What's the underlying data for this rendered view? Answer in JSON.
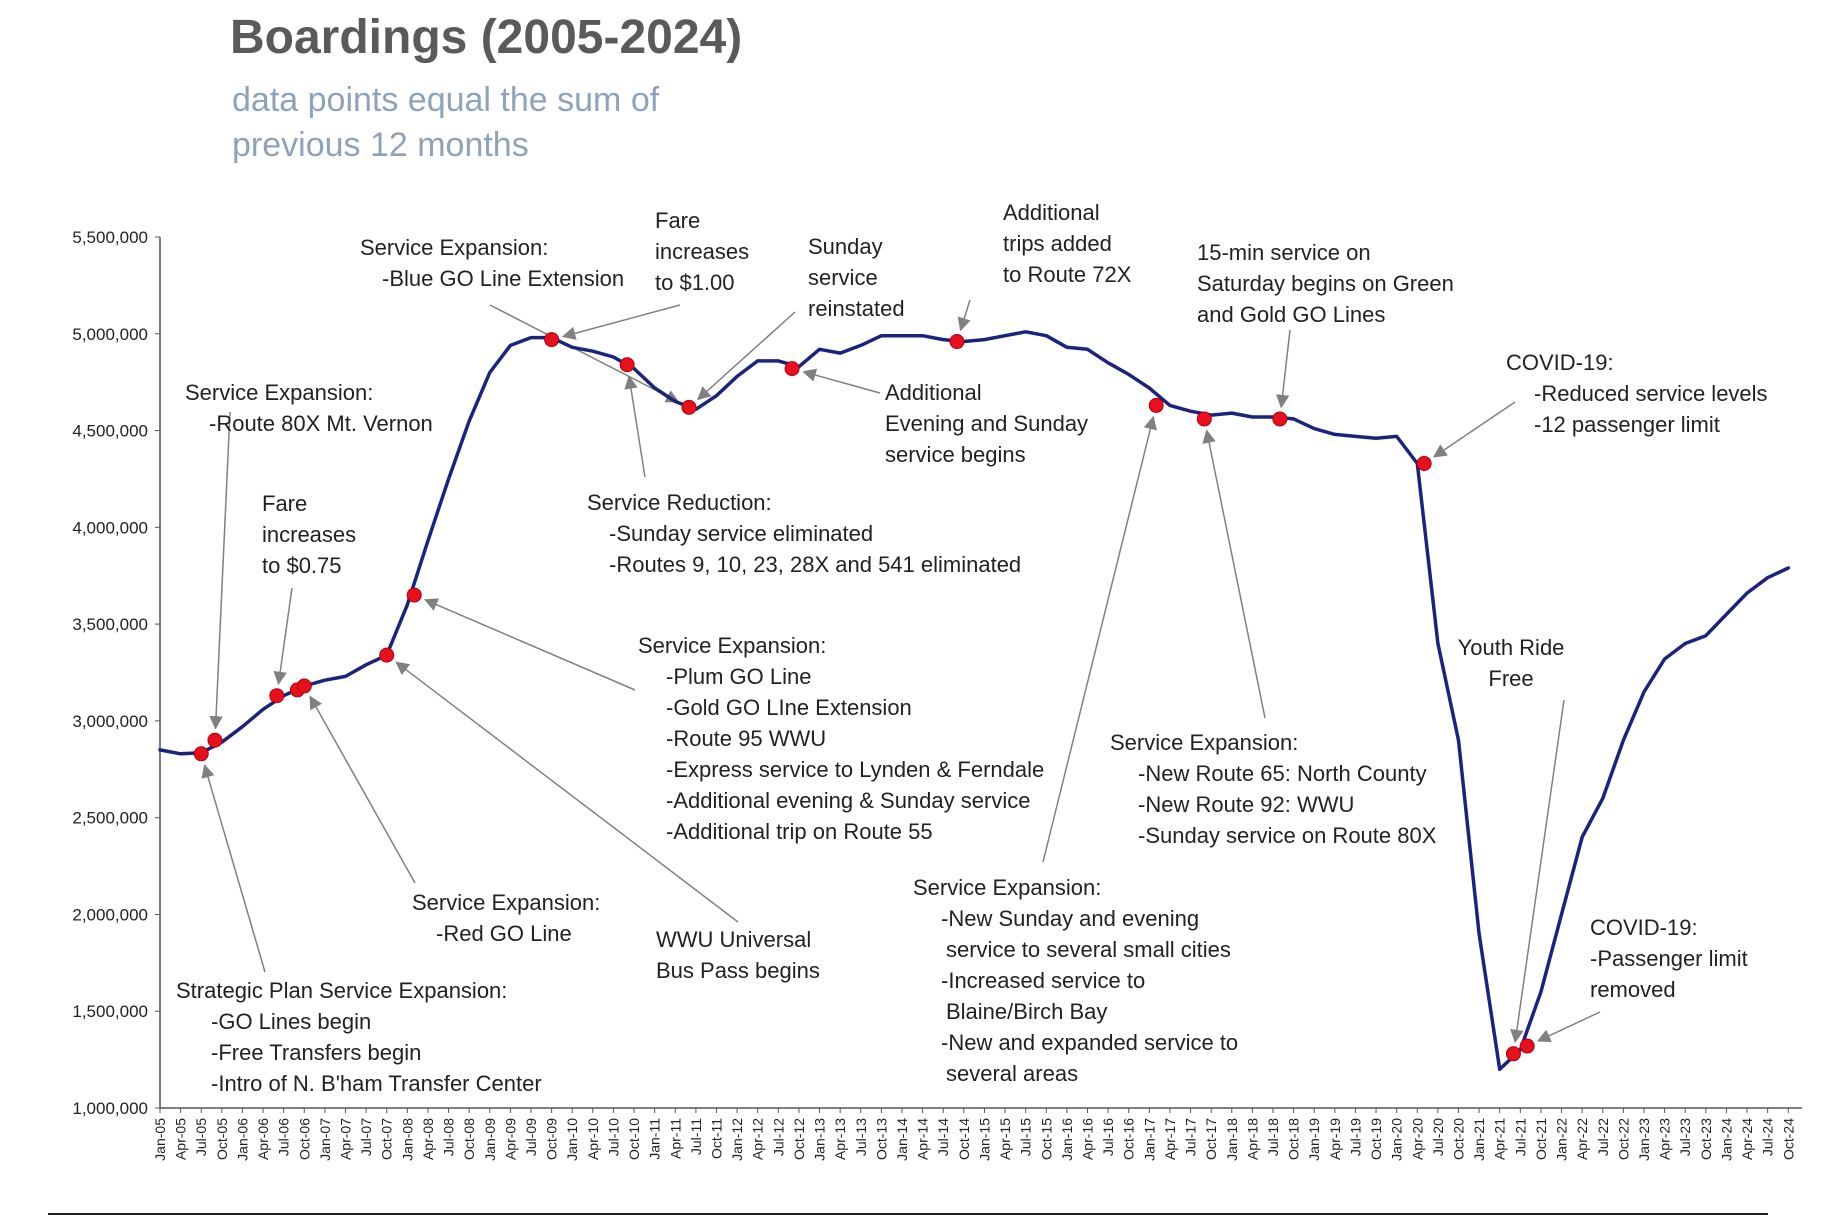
{
  "header": {
    "title": "Boardings (2005-2024)",
    "subtitle": "data points equal the sum of previous 12 months"
  },
  "colors": {
    "line": "#1a237e",
    "marker": "#e8101c",
    "arrow": "#808080",
    "axis": "#555555"
  },
  "chart_data": {
    "type": "line",
    "title": "Boardings (2005-2024)",
    "subtitle": "data points equal the sum of previous 12 months",
    "xlabel": "",
    "ylabel": "",
    "ylim": [
      1000000,
      5500000
    ],
    "grid": false,
    "legend": "none",
    "y_ticks": [
      "1,000,000",
      "1,500,000",
      "2,000,000",
      "2,500,000",
      "3,000,000",
      "3,500,000",
      "4,000,000",
      "4,500,000",
      "5,000,000",
      "5,500,000"
    ],
    "x_ticks": [
      "Jan-05",
      "Apr-05",
      "Jul-05",
      "Oct-05",
      "Jan-06",
      "Apr-06",
      "Jul-06",
      "Oct-06",
      "Jan-07",
      "Apr-07",
      "Jul-07",
      "Oct-07",
      "Jan-08",
      "Apr-08",
      "Jul-08",
      "Oct-08",
      "Jan-09",
      "Apr-09",
      "Jul-09",
      "Oct-09",
      "Jan-10",
      "Apr-10",
      "Jul-10",
      "Oct-10",
      "Jan-11",
      "Apr-11",
      "Jul-11",
      "Oct-11",
      "Jan-12",
      "Apr-12",
      "Jul-12",
      "Oct-12",
      "Jan-13",
      "Apr-13",
      "Jul-13",
      "Oct-13",
      "Jan-14",
      "Apr-14",
      "Jul-14",
      "Oct-14",
      "Jan-15",
      "Apr-15",
      "Jul-15",
      "Oct-15",
      "Jan-16",
      "Apr-16",
      "Jul-16",
      "Oct-16",
      "Jan-17",
      "Apr-17",
      "Jul-17",
      "Oct-17",
      "Jan-18",
      "Apr-18",
      "Jul-18",
      "Oct-18",
      "Jan-19",
      "Apr-19",
      "Jul-19",
      "Oct-19",
      "Jan-20",
      "Apr-20",
      "Jul-20",
      "Oct-20",
      "Jan-21",
      "Apr-21",
      "Jul-21",
      "Oct-21",
      "Jan-22",
      "Apr-22",
      "Jul-22",
      "Oct-22",
      "Jan-23",
      "Apr-23",
      "Jul-23",
      "Oct-23",
      "Jan-24",
      "Apr-24",
      "Jul-24",
      "Oct-24"
    ],
    "series": [
      {
        "name": "",
        "points": [
          [
            "Jan-05",
            2850000
          ],
          [
            "Apr-05",
            2830000
          ],
          [
            "Jul-05",
            2835000
          ],
          [
            "Oct-05",
            2890000
          ],
          [
            "Jan-06",
            2970000
          ],
          [
            "Apr-06",
            3060000
          ],
          [
            "Jul-06",
            3130000
          ],
          [
            "Oct-06",
            3180000
          ],
          [
            "Jan-07",
            3210000
          ],
          [
            "Apr-07",
            3230000
          ],
          [
            "Jul-07",
            3290000
          ],
          [
            "Oct-07",
            3340000
          ],
          [
            "Jan-08",
            3600000
          ],
          [
            "Apr-08",
            3930000
          ],
          [
            "Jul-08",
            4250000
          ],
          [
            "Oct-08",
            4550000
          ],
          [
            "Jan-09",
            4800000
          ],
          [
            "Apr-09",
            4940000
          ],
          [
            "Jul-09",
            4980000
          ],
          [
            "Oct-09",
            4980000
          ],
          [
            "Jan-10",
            4930000
          ],
          [
            "Apr-10",
            4910000
          ],
          [
            "Jul-10",
            4880000
          ],
          [
            "Oct-10",
            4820000
          ],
          [
            "Jan-11",
            4720000
          ],
          [
            "Apr-11",
            4650000
          ],
          [
            "Jul-11",
            4610000
          ],
          [
            "Oct-11",
            4680000
          ],
          [
            "Jan-12",
            4780000
          ],
          [
            "Apr-12",
            4860000
          ],
          [
            "Jul-12",
            4860000
          ],
          [
            "Oct-12",
            4830000
          ],
          [
            "Jan-13",
            4920000
          ],
          [
            "Apr-13",
            4900000
          ],
          [
            "Jul-13",
            4940000
          ],
          [
            "Oct-13",
            4990000
          ],
          [
            "Jan-14",
            4990000
          ],
          [
            "Apr-14",
            4990000
          ],
          [
            "Jul-14",
            4970000
          ],
          [
            "Oct-14",
            4960000
          ],
          [
            "Jan-15",
            4970000
          ],
          [
            "Apr-15",
            4990000
          ],
          [
            "Jul-15",
            5010000
          ],
          [
            "Oct-15",
            4990000
          ],
          [
            "Jan-16",
            4930000
          ],
          [
            "Apr-16",
            4920000
          ],
          [
            "Jul-16",
            4850000
          ],
          [
            "Oct-16",
            4790000
          ],
          [
            "Jan-17",
            4720000
          ],
          [
            "Apr-17",
            4630000
          ],
          [
            "Jul-17",
            4600000
          ],
          [
            "Oct-17",
            4580000
          ],
          [
            "Jan-18",
            4590000
          ],
          [
            "Apr-18",
            4570000
          ],
          [
            "Jul-18",
            4570000
          ],
          [
            "Oct-18",
            4560000
          ],
          [
            "Jan-19",
            4510000
          ],
          [
            "Apr-19",
            4480000
          ],
          [
            "Jul-19",
            4470000
          ],
          [
            "Oct-19",
            4460000
          ],
          [
            "Jan-20",
            4470000
          ],
          [
            "Apr-20",
            4330000
          ],
          [
            "Jul-20",
            3400000
          ],
          [
            "Oct-20",
            2900000
          ],
          [
            "Jan-21",
            1900000
          ],
          [
            "Apr-21",
            1200000
          ],
          [
            "Jul-21",
            1300000
          ],
          [
            "Oct-21",
            1600000
          ],
          [
            "Jan-22",
            2000000
          ],
          [
            "Apr-22",
            2400000
          ],
          [
            "Jul-22",
            2600000
          ],
          [
            "Oct-22",
            2900000
          ],
          [
            "Jan-23",
            3150000
          ],
          [
            "Apr-23",
            3320000
          ],
          [
            "Jul-23",
            3400000
          ],
          [
            "Oct-23",
            3440000
          ],
          [
            "Jan-24",
            3550000
          ],
          [
            "Apr-24",
            3660000
          ],
          [
            "Jul-24",
            3740000
          ],
          [
            "Oct-24",
            3790000
          ]
        ]
      }
    ],
    "markers": [
      [
        "Jul-05",
        2830000
      ],
      [
        "Sep-05",
        2900000
      ],
      [
        "Jun-06",
        3130000
      ],
      [
        "Sep-06",
        3160000
      ],
      [
        "Oct-06",
        3180000
      ],
      [
        "Oct-07",
        3340000
      ],
      [
        "Feb-08",
        3650000
      ],
      [
        "Oct-09",
        4970000
      ],
      [
        "Sep-10",
        4840000
      ],
      [
        "Jun-11",
        4620000
      ],
      [
        "Sep-12",
        4820000
      ],
      [
        "Sep-14",
        4960000
      ],
      [
        "Feb-17",
        4630000
      ],
      [
        "Sep-17",
        4560000
      ],
      [
        "Aug-18",
        4560000
      ],
      [
        "May-20",
        4330000
      ],
      [
        "Jun-21",
        1280000
      ],
      [
        "Aug-21",
        1320000
      ]
    ],
    "annotations": [
      {
        "lines": [
          "Service Expansion:",
          "-Blue GO Line Extension"
        ]
      },
      {
        "lines": [
          "Fare",
          "increases",
          "to $1.00"
        ]
      },
      {
        "lines": [
          "Sunday",
          "service",
          "reinstated"
        ]
      },
      {
        "lines": [
          "Additional",
          "trips added",
          "to Route 72X"
        ]
      },
      {
        "lines": [
          "15-min service on",
          "Saturday begins on Green",
          "and Gold GO Lines"
        ]
      },
      {
        "lines": [
          "COVID-19:",
          "-Reduced service levels",
          "-12 passenger limit"
        ]
      },
      {
        "lines": [
          "Service Expansion:",
          "-Route 80X Mt. Vernon"
        ]
      },
      {
        "lines": [
          "Fare",
          "increases",
          "to $0.75"
        ]
      },
      {
        "lines": [
          "Additional",
          "Evening and Sunday",
          "service begins"
        ]
      },
      {
        "lines": [
          "Service Reduction:",
          "-Sunday service eliminated",
          "-Routes 9, 10, 23, 28X and 541 eliminated"
        ]
      },
      {
        "lines": [
          "Service Expansion:",
          "-Plum GO Line",
          "-Gold GO LIne Extension",
          "-Route 95 WWU",
          "-Express service to Lynden & Ferndale",
          "-Additional evening & Sunday service",
          "-Additional trip on Route 55"
        ]
      },
      {
        "lines": [
          "Service Expansion:",
          "-New Route 65: North County",
          "-New Route 92: WWU",
          "-Sunday service on Route 80X"
        ]
      },
      {
        "lines": [
          "Youth Ride",
          "Free"
        ]
      },
      {
        "lines": [
          "Service Expansion:",
          "-Red GO Line"
        ]
      },
      {
        "lines": [
          "WWU Universal",
          "Bus Pass begins"
        ]
      },
      {
        "lines": [
          "Service Expansion:",
          "-New Sunday and evening",
          "service to several small cities",
          "-Increased service to",
          "Blaine/Birch Bay",
          "-New and expanded service to",
          "several areas"
        ]
      },
      {
        "lines": [
          "COVID-19:",
          "-Passenger limit",
          "removed"
        ]
      },
      {
        "lines": [
          "Strategic Plan Service Expansion:",
          "-GO Lines begin",
          "-Free Transfers begin",
          "-Intro of N. B'ham Transfer Center"
        ]
      }
    ]
  }
}
